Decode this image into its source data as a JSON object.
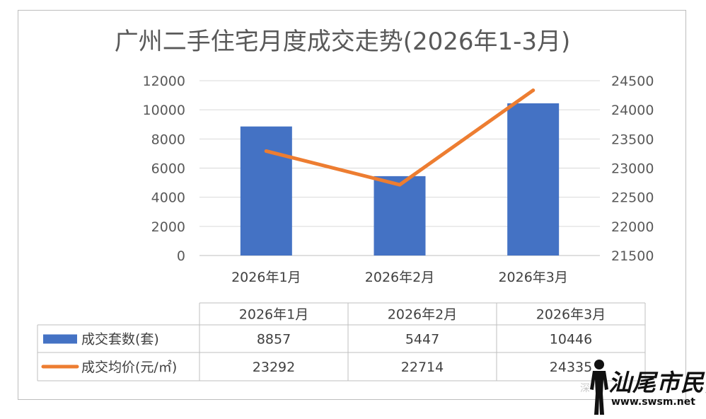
{
  "chart_data": {
    "type": "bar",
    "title": "广州二手住宅月度成交走势(2026年1-3月)",
    "categories": [
      "2026年1月",
      "2026年2月",
      "2026年3月"
    ],
    "series": [
      {
        "name": "成交套数(套)",
        "type": "bar",
        "axis": "left",
        "color": "#4472c4",
        "values": [
          8857,
          5447,
          10446
        ]
      },
      {
        "name": "成交均价(元/㎡)",
        "type": "line",
        "axis": "right",
        "color": "#ed7d31",
        "values": [
          23292,
          22714,
          24335
        ]
      }
    ],
    "ylim_left": [
      0,
      12000
    ],
    "yticks_left": [
      "0",
      "2000",
      "4000",
      "6000",
      "8000",
      "10000",
      "12000"
    ],
    "ylim_right": [
      21500,
      24500
    ],
    "yticks_right": [
      "21500",
      "22000",
      "22500",
      "23000",
      "23500",
      "24000",
      "24500"
    ],
    "grid": true,
    "legend": "data-table"
  },
  "watermark": {
    "brand": "汕尾市民网",
    "url": "www.swsm.net",
    "faint_text": "深"
  }
}
